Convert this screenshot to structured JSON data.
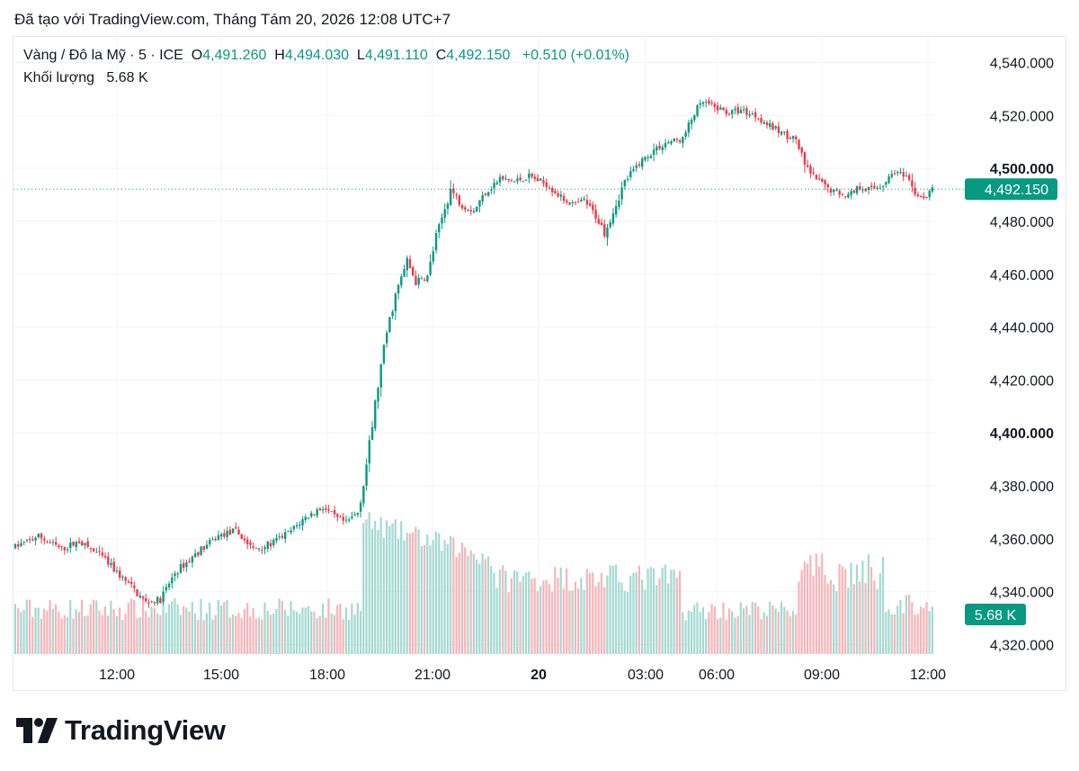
{
  "caption": "Đã tạo với TradingView.com, Tháng Tám 20, 2026 12:08 UTC+7",
  "legend": {
    "symbol": "Vàng / Đô la Mỹ · 5 · ICE",
    "open_label": "O",
    "open_value": "4,491.260",
    "high_label": "H",
    "high_value": "4,494.030",
    "low_label": "L",
    "low_value": "4,491.110",
    "close_label": "C",
    "close_value": "4,492.150",
    "change": "+0.510 (+0.01%)",
    "volume_label": "Khối lượng",
    "volume_value": "5.68 K"
  },
  "brand": {
    "name": "TradingView"
  },
  "colors": {
    "up": "#089981",
    "down": "#f23645",
    "up_volume": "#a3d9d1",
    "down_volume": "#f9b3b8",
    "grid": "#f0f3fa",
    "price_line": "#089981"
  },
  "chart_data": {
    "type": "candlestick",
    "symbol": "Vàng / Đô la Mỹ",
    "interval": "5",
    "exchange": "ICE",
    "y_ticks": [
      "4,540.000",
      "4,520.000",
      "4,500.000",
      "4,480.000",
      "4,460.000",
      "4,440.000",
      "4,420.000",
      "4,400.000",
      "4,380.000",
      "4,360.000",
      "4,340.000",
      "4,320.000"
    ],
    "y_ticks_bold": [
      "4,500.000",
      "4,400.000"
    ],
    "ylim": [
      4316,
      4546
    ],
    "x_ticks": [
      "12:00",
      "15:00",
      "18:00",
      "21:00",
      "20",
      "03:00",
      "06:00",
      "09:00",
      "12:00"
    ],
    "x_ticks_bold": [
      "20"
    ],
    "last_price": "4,492.150",
    "last_volume": "5.68 K",
    "price_path": [
      [
        0,
        4357
      ],
      [
        8,
        4361
      ],
      [
        16,
        4356
      ],
      [
        22,
        4359
      ],
      [
        30,
        4353
      ],
      [
        38,
        4344
      ],
      [
        45,
        4336
      ],
      [
        50,
        4337
      ],
      [
        55,
        4347
      ],
      [
        62,
        4354
      ],
      [
        70,
        4361
      ],
      [
        76,
        4363
      ],
      [
        82,
        4356
      ],
      [
        88,
        4358
      ],
      [
        95,
        4363
      ],
      [
        100,
        4368
      ],
      [
        106,
        4372
      ],
      [
        110,
        4368
      ],
      [
        114,
        4366
      ],
      [
        118,
        4370
      ],
      [
        120,
        4381
      ],
      [
        122,
        4395
      ],
      [
        125,
        4418
      ],
      [
        128,
        4438
      ],
      [
        131,
        4452
      ],
      [
        135,
        4465
      ],
      [
        138,
        4457
      ],
      [
        142,
        4459
      ],
      [
        145,
        4474
      ],
      [
        150,
        4492
      ],
      [
        154,
        4486
      ],
      [
        158,
        4484
      ],
      [
        162,
        4491
      ],
      [
        167,
        4496
      ],
      [
        172,
        4495
      ],
      [
        177,
        4497
      ],
      [
        183,
        4494
      ],
      [
        188,
        4489
      ],
      [
        193,
        4486
      ],
      [
        196,
        4488
      ],
      [
        200,
        4482
      ],
      [
        203,
        4476
      ],
      [
        206,
        4484
      ],
      [
        210,
        4495
      ],
      [
        215,
        4502
      ],
      [
        220,
        4507
      ],
      [
        225,
        4510
      ],
      [
        230,
        4511
      ],
      [
        234,
        4521
      ],
      [
        237,
        4525
      ],
      [
        241,
        4523
      ],
      [
        246,
        4521
      ],
      [
        250,
        4522
      ],
      [
        255,
        4520
      ],
      [
        260,
        4516
      ],
      [
        265,
        4513
      ],
      [
        269,
        4511
      ],
      [
        272,
        4501
      ],
      [
        275,
        4497
      ],
      [
        279,
        4493
      ],
      [
        283,
        4491
      ],
      [
        287,
        4490
      ],
      [
        291,
        4493
      ],
      [
        295,
        4492
      ],
      [
        299,
        4494
      ],
      [
        303,
        4499
      ],
      [
        307,
        4496
      ],
      [
        310,
        4491
      ],
      [
        313,
        4488
      ],
      [
        316,
        4492
      ]
    ],
    "n_candles": 317
  }
}
